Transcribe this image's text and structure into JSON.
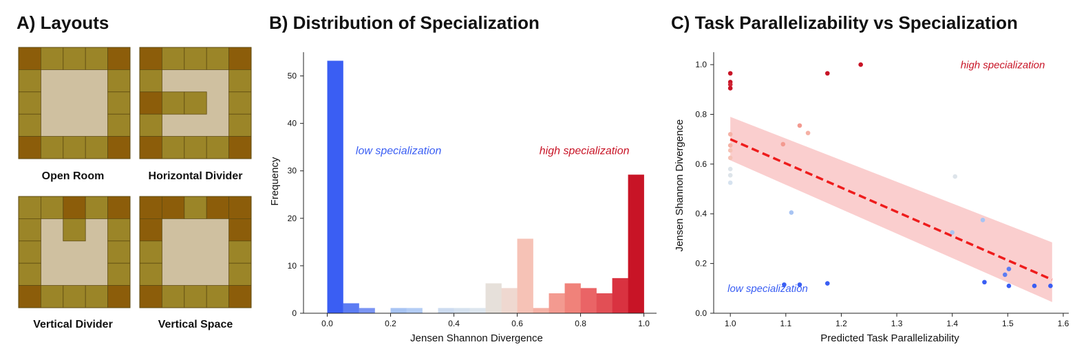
{
  "panels": {
    "a_title": "A) Layouts",
    "b_title": "B) Distribution of Specialization",
    "c_title": "C) Task Parallelizability vs Specialization"
  },
  "layouts": {
    "colors": {
      "counter": "#9b8528",
      "corner": "#8c5d0a",
      "floor": "#cfc0a0",
      "edge": "#5e4a10"
    },
    "items": [
      {
        "label": "Open Room",
        "grid": [
          "CKKKC",
          "K...K",
          "K...K",
          "K...K",
          "CKKKC"
        ]
      },
      {
        "label": "Horizontal Divider",
        "grid": [
          "CKKKC",
          "K...K",
          "CKK.K",
          "K...K",
          "CKKKC"
        ]
      },
      {
        "label": "Vertical Divider",
        "grid": [
          "KKCKC",
          "K.K.K",
          "K...K",
          "K...K",
          "CKKKC"
        ]
      },
      {
        "label": "Vertical Space",
        "grid": [
          "CCKCC",
          "C...C",
          "K...K",
          "K...K",
          "CKKKC"
        ]
      }
    ]
  },
  "chart_data": [
    {
      "type": "bar",
      "title": "Distribution of Specialization",
      "xlabel": "Jensen Shannon Divergence",
      "ylabel": "Frequency",
      "xlim": [
        -0.075,
        1.04
      ],
      "ylim": [
        0,
        55
      ],
      "xticks": [
        "0.0",
        "0.2",
        "0.4",
        "0.6",
        "0.8",
        "1.0"
      ],
      "yticks": [
        "0",
        "10",
        "20",
        "30",
        "40",
        "50"
      ],
      "bin_width": 0.05,
      "bins": [
        {
          "start": 0.0,
          "value": 53.2,
          "color": "#3a5ef3"
        },
        {
          "start": 0.05,
          "value": 2.1,
          "color": "#5c7cf3"
        },
        {
          "start": 0.1,
          "value": 1.1,
          "color": "#7b95f3"
        },
        {
          "start": 0.15,
          "value": 0,
          "color": "#a6bdf4"
        },
        {
          "start": 0.2,
          "value": 1.1,
          "color": "#a8c4f3"
        },
        {
          "start": 0.25,
          "value": 1.1,
          "color": "#b4cdf5"
        },
        {
          "start": 0.3,
          "value": 0,
          "color": "#c6d8f4"
        },
        {
          "start": 0.35,
          "value": 1.1,
          "color": "#cddcf0"
        },
        {
          "start": 0.4,
          "value": 1.1,
          "color": "#d6e2ef"
        },
        {
          "start": 0.45,
          "value": 1.1,
          "color": "#dde6ee"
        },
        {
          "start": 0.5,
          "value": 6.3,
          "color": "#e6e0da"
        },
        {
          "start": 0.55,
          "value": 5.3,
          "color": "#efd8d0"
        },
        {
          "start": 0.6,
          "value": 15.7,
          "color": "#f6c2b6"
        },
        {
          "start": 0.65,
          "value": 1.1,
          "color": "#f5b1a5"
        },
        {
          "start": 0.7,
          "value": 4.2,
          "color": "#f39a90"
        },
        {
          "start": 0.75,
          "value": 6.3,
          "color": "#f0827a"
        },
        {
          "start": 0.8,
          "value": 5.3,
          "color": "#ea6466"
        },
        {
          "start": 0.85,
          "value": 4.2,
          "color": "#e24f55"
        },
        {
          "start": 0.9,
          "value": 7.4,
          "color": "#d93240"
        },
        {
          "start": 0.95,
          "value": 29.2,
          "color": "#c81426"
        }
      ],
      "annotations": [
        {
          "text": "low specialization",
          "x": 0.09,
          "y": 33.5,
          "color": "#3a5ef3"
        },
        {
          "text": "high specialization",
          "x": 0.67,
          "y": 33.5,
          "color": "#c81426"
        }
      ]
    },
    {
      "type": "scatter",
      "title": "Task Parallelizability vs Specialization",
      "xlabel": "Predicted Task Parallelizability",
      "ylabel": "Jensen Shannon Divergence",
      "xlim": [
        0.97,
        1.61
      ],
      "ylim": [
        0,
        1.05
      ],
      "xticks": [
        "1.0",
        "1.1",
        "1.2",
        "1.3",
        "1.4",
        "1.5",
        "1.6"
      ],
      "yticks": [
        "0.0",
        "0.2",
        "0.4",
        "0.6",
        "0.8",
        "1.0"
      ],
      "points": [
        {
          "x": 1.0,
          "y": 0.965,
          "color": "#c81426"
        },
        {
          "x": 1.0,
          "y": 0.93,
          "color": "#c81426"
        },
        {
          "x": 1.0,
          "y": 0.92,
          "color": "#d02434"
        },
        {
          "x": 1.0,
          "y": 0.905,
          "color": "#c81426"
        },
        {
          "x": 1.0,
          "y": 0.72,
          "color": "#f5b1a5"
        },
        {
          "x": 1.0,
          "y": 0.675,
          "color": "#f5b1a5"
        },
        {
          "x": 1.0,
          "y": 0.655,
          "color": "#f6c2b6"
        },
        {
          "x": 1.0,
          "y": 0.625,
          "color": "#f6c2b6"
        },
        {
          "x": 1.0,
          "y": 0.58,
          "color": "#dde4ea"
        },
        {
          "x": 1.0,
          "y": 0.555,
          "color": "#dde4ea"
        },
        {
          "x": 1.0,
          "y": 0.525,
          "color": "#d6e2ef"
        },
        {
          "x": 1.095,
          "y": 0.68,
          "color": "#f39a90"
        },
        {
          "x": 1.125,
          "y": 0.755,
          "color": "#f39a90"
        },
        {
          "x": 1.14,
          "y": 0.725,
          "color": "#f5b1a5"
        },
        {
          "x": 1.175,
          "y": 0.965,
          "color": "#c81426"
        },
        {
          "x": 1.235,
          "y": 1.0,
          "color": "#c81426"
        },
        {
          "x": 1.11,
          "y": 0.405,
          "color": "#a8c4f3"
        },
        {
          "x": 1.405,
          "y": 0.55,
          "color": "#dde4ea"
        },
        {
          "x": 1.455,
          "y": 0.375,
          "color": "#a8c4f3"
        },
        {
          "x": 1.4,
          "y": 0.325,
          "color": "#a8c4f3"
        },
        {
          "x": 1.097,
          "y": 0.115,
          "color": "#3a5ef3"
        },
        {
          "x": 1.125,
          "y": 0.115,
          "color": "#3a5ef3"
        },
        {
          "x": 1.175,
          "y": 0.12,
          "color": "#3a5ef3"
        },
        {
          "x": 1.458,
          "y": 0.125,
          "color": "#3a5ef3"
        },
        {
          "x": 1.495,
          "y": 0.155,
          "color": "#5c7cf3"
        },
        {
          "x": 1.502,
          "y": 0.178,
          "color": "#5c7cf3"
        },
        {
          "x": 1.502,
          "y": 0.11,
          "color": "#3a5ef3"
        },
        {
          "x": 1.548,
          "y": 0.11,
          "color": "#3a5ef3"
        },
        {
          "x": 1.577,
          "y": 0.11,
          "color": "#3a5ef3"
        }
      ],
      "trend_line": {
        "x": [
          1.0,
          1.58
        ],
        "y": [
          0.7,
          0.135
        ],
        "color": "#ee1c1c"
      },
      "confidence_band": {
        "x": [
          1.0,
          1.58
        ],
        "upper": [
          0.79,
          0.285
        ],
        "lower": [
          0.615,
          0.045
        ],
        "color": "#f9c5c5"
      },
      "annotations": [
        {
          "text": "high specialization",
          "x": 1.415,
          "y": 0.985,
          "color": "#c81426"
        },
        {
          "text": "low specialization",
          "x": 0.995,
          "y": 0.085,
          "color": "#3a5ef3"
        }
      ]
    }
  ]
}
